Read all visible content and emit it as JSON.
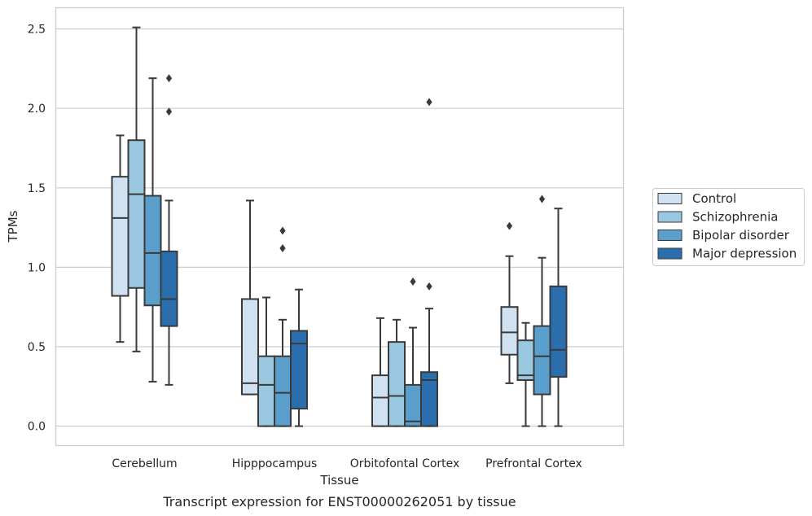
{
  "caption": "Transcript expression for ENST00000262051 by tissue",
  "chart_data": {
    "type": "box",
    "xlabel": "Tissue",
    "ylabel": "TPMs",
    "ylim": [
      -0.12,
      2.62
    ],
    "yticks": [
      0.0,
      0.5,
      1.0,
      1.5,
      2.0,
      2.5
    ],
    "ytick_labels": [
      "0.0",
      "0.5",
      "1.0",
      "1.5",
      "2.0",
      "2.5"
    ],
    "grid": "horizontal",
    "legend_position": "right",
    "categories": [
      "Cerebellum",
      "Hipppocampus",
      "Orbitofontal Cortex",
      "Prefrontal Cortex"
    ],
    "series": [
      {
        "name": "Control",
        "color": "#d0e1f2",
        "boxes": [
          {
            "whislo": 0.53,
            "q1": 0.82,
            "med": 1.31,
            "q3": 1.57,
            "whishi": 1.83,
            "fliers": []
          },
          {
            "whislo": 0.2,
            "q1": 0.2,
            "med": 0.27,
            "q3": 0.8,
            "whishi": 1.42,
            "fliers": []
          },
          {
            "whislo": 0.0,
            "q1": 0.0,
            "med": 0.18,
            "q3": 0.32,
            "whishi": 0.68,
            "fliers": []
          },
          {
            "whislo": 0.27,
            "q1": 0.45,
            "med": 0.59,
            "q3": 0.75,
            "whishi": 1.07,
            "fliers": [
              1.26
            ]
          }
        ]
      },
      {
        "name": "Schizophrenia",
        "color": "#9ac8e0",
        "boxes": [
          {
            "whislo": 0.47,
            "q1": 0.87,
            "med": 1.46,
            "q3": 1.8,
            "whishi": 2.51,
            "fliers": []
          },
          {
            "whislo": 0.0,
            "q1": 0.0,
            "med": 0.26,
            "q3": 0.44,
            "whishi": 0.81,
            "fliers": []
          },
          {
            "whislo": 0.0,
            "q1": 0.0,
            "med": 0.19,
            "q3": 0.53,
            "whishi": 0.67,
            "fliers": []
          },
          {
            "whislo": 0.0,
            "q1": 0.29,
            "med": 0.32,
            "q3": 0.54,
            "whishi": 0.65,
            "fliers": []
          }
        ]
      },
      {
        "name": "Bipolar disorder",
        "color": "#5a9fcc",
        "boxes": [
          {
            "whislo": 0.28,
            "q1": 0.76,
            "med": 1.09,
            "q3": 1.45,
            "whishi": 2.19,
            "fliers": []
          },
          {
            "whislo": 0.0,
            "q1": 0.0,
            "med": 0.21,
            "q3": 0.44,
            "whishi": 0.67,
            "fliers": [
              1.12,
              1.23
            ]
          },
          {
            "whislo": 0.0,
            "q1": 0.0,
            "med": 0.03,
            "q3": 0.26,
            "whishi": 0.62,
            "fliers": [
              0.91
            ]
          },
          {
            "whislo": 0.0,
            "q1": 0.2,
            "med": 0.44,
            "q3": 0.63,
            "whishi": 1.06,
            "fliers": [
              1.43
            ]
          }
        ]
      },
      {
        "name": "Major depression",
        "color": "#2b6ead",
        "boxes": [
          {
            "whislo": 0.26,
            "q1": 0.63,
            "med": 0.8,
            "q3": 1.1,
            "whishi": 1.42,
            "fliers": [
              1.98,
              2.19
            ]
          },
          {
            "whislo": 0.0,
            "q1": 0.11,
            "med": 0.52,
            "q3": 0.6,
            "whishi": 0.86,
            "fliers": []
          },
          {
            "whislo": 0.0,
            "q1": 0.0,
            "med": 0.29,
            "q3": 0.34,
            "whishi": 0.74,
            "fliers": [
              0.88,
              2.04
            ]
          },
          {
            "whislo": 0.0,
            "q1": 0.31,
            "med": 0.48,
            "q3": 0.88,
            "whishi": 1.37,
            "fliers": []
          }
        ]
      }
    ]
  }
}
